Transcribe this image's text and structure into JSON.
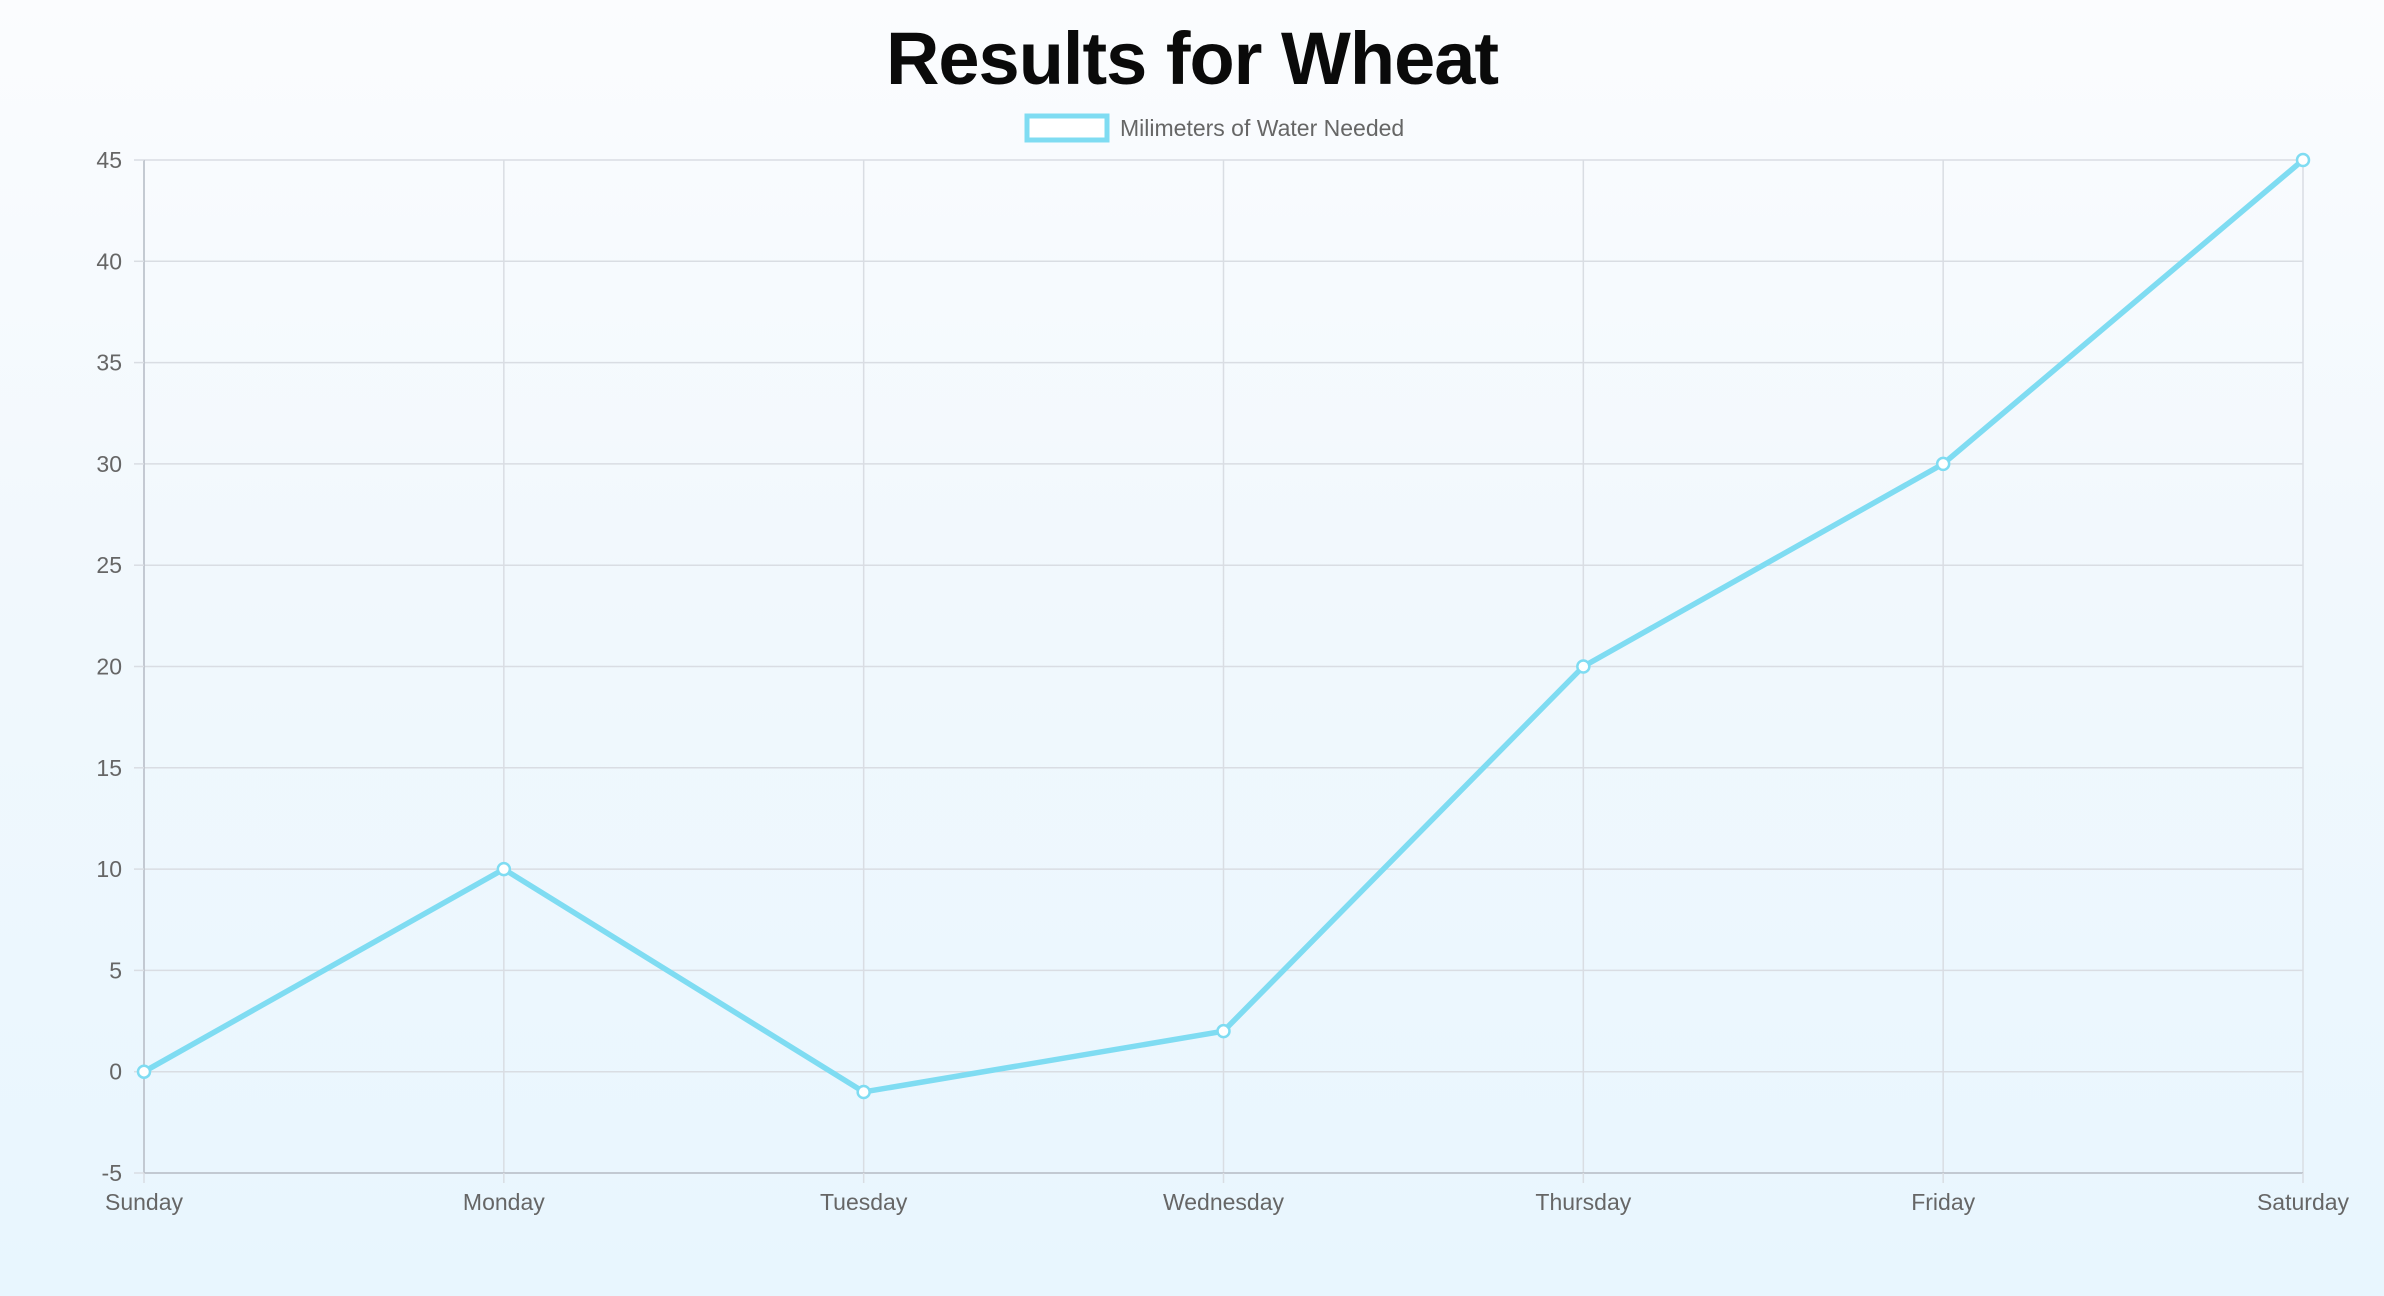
{
  "chart_data": {
    "type": "line",
    "title": "Results for Wheat",
    "categories": [
      "Sunday",
      "Monday",
      "Tuesday",
      "Wednesday",
      "Thursday",
      "Friday",
      "Saturday"
    ],
    "series": [
      {
        "name": "Milimeters of Water Needed",
        "values": [
          0,
          10,
          -1,
          2,
          20,
          30,
          45
        ],
        "color": "#7fdcf2"
      }
    ],
    "xlabel": "",
    "ylabel": "",
    "ylim": [
      -5,
      45
    ],
    "yticks": [
      "45",
      "40",
      "35",
      "30",
      "25",
      "20",
      "15",
      "10",
      "5",
      "0",
      "-5"
    ],
    "grid": true,
    "legend": "top-center"
  }
}
